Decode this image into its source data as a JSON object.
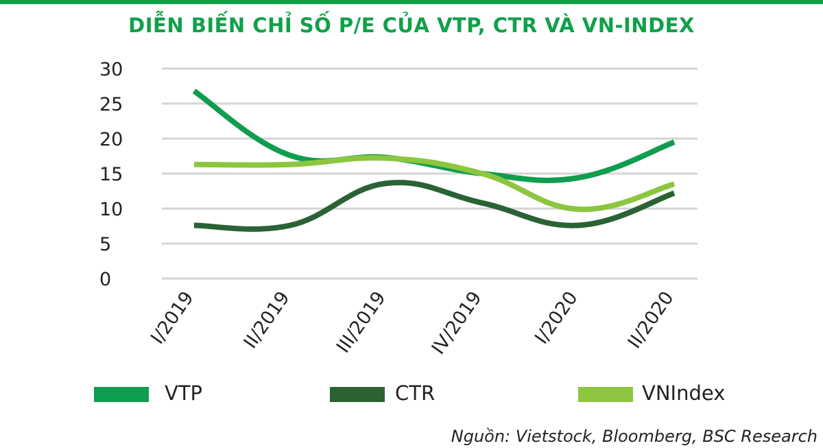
{
  "title": "DIỄN BIẾN CHỈ SỐ P/E CỦA VTP, CTR VÀ VN-INDEX",
  "source": "Nguồn: Vietstock, Bloomberg, BSC Research",
  "colors": {
    "accent": "#0fa14a",
    "VTP": "#0f9d4f",
    "CTR": "#2a6234",
    "VNIndex": "#8cc63f",
    "grid": "#d4d4d4",
    "text": "#222222"
  },
  "chart_data": {
    "type": "line",
    "categories": [
      "I/2019",
      "II/2019",
      "III/2019",
      "IV/2019",
      "I/2020",
      "II/2020"
    ],
    "ylim": [
      0,
      30
    ],
    "yticks": [
      0,
      5,
      10,
      15,
      20,
      25,
      30
    ],
    "grid": true,
    "legend_position": "bottom",
    "series": [
      {
        "name": "VTP",
        "values": [
          26.8,
          17.6,
          17.3,
          15.0,
          14.4,
          19.5
        ]
      },
      {
        "name": "CTR",
        "values": [
          7.6,
          7.6,
          13.6,
          10.8,
          7.6,
          12.2
        ]
      },
      {
        "name": "VNIndex",
        "values": [
          16.3,
          16.3,
          17.2,
          15.0,
          9.9,
          13.5
        ]
      }
    ]
  }
}
